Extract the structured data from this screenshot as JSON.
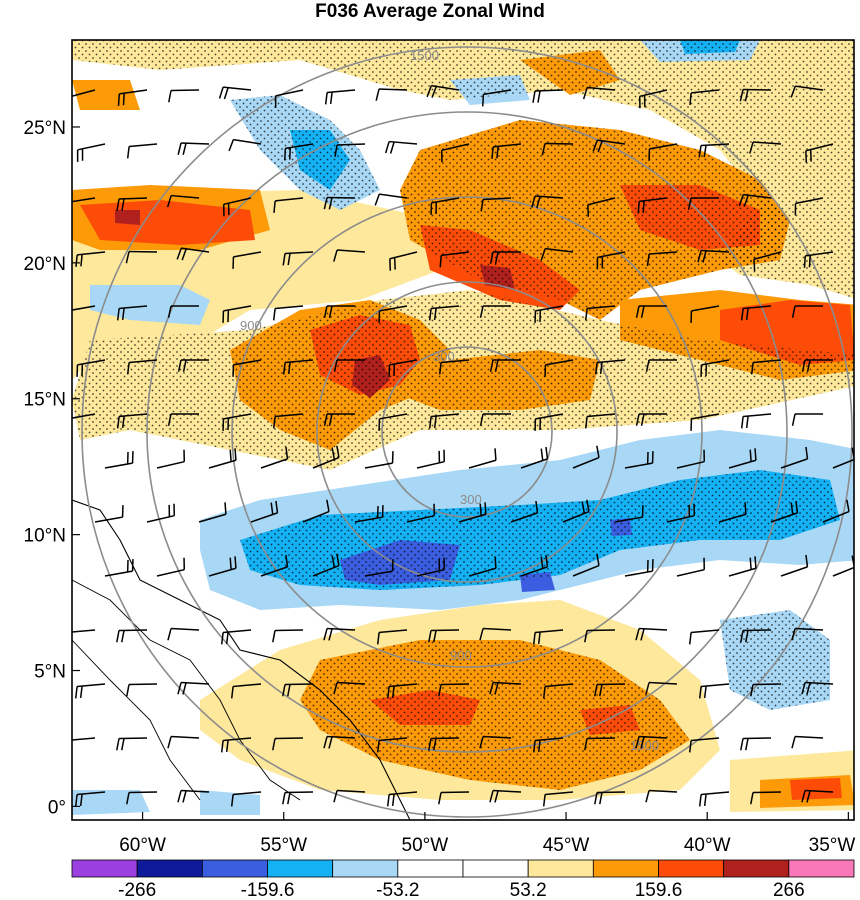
{
  "title": "F036 Average Zonal Wind",
  "chart_data": {
    "type": "heatmap",
    "title": "F036 Average Zonal Wind",
    "x_axis": {
      "label": "",
      "unit": "°W",
      "ticks": [
        -60,
        -55,
        -50,
        -45,
        -40,
        -35
      ],
      "tick_labels": [
        "60°W",
        "55°W",
        "50°W",
        "45°W",
        "40°W",
        "35°W"
      ],
      "range": [
        -62.5,
        -34.8
      ]
    },
    "y_axis": {
      "label": "",
      "unit": "°N",
      "ticks": [
        0,
        5,
        10,
        15,
        20,
        25
      ],
      "tick_labels": [
        "0°",
        "5°N",
        "10°N",
        "15°N",
        "20°N",
        "25°N"
      ],
      "range": [
        -0.5,
        28.2
      ]
    },
    "colorbar": {
      "colors": [
        "#9c3fe0",
        "#0f1a9a",
        "#3b5ee0",
        "#14b2f5",
        "#a8d8f5",
        "#ffffff",
        "#ffffff",
        "#fde89c",
        "#fc9a08",
        "#fc4c08",
        "#b0201c",
        "#f878b8"
      ],
      "labels": [
        "-266",
        "-159.6",
        "-53.2",
        "53.2",
        "159.6",
        "266"
      ],
      "label_positions": [
        1,
        3,
        5,
        7,
        9,
        11
      ]
    },
    "range_rings": {
      "center": [
        -47.4,
        13.4
      ],
      "labels": [
        "300",
        "900",
        "1500"
      ]
    },
    "wind_field": {
      "dominant_direction": "westerly/easterly zonal barbs",
      "stippling": "significant regions"
    },
    "features": [
      {
        "name": "northern-positive-band",
        "sign": "positive",
        "center": [
          -45.5,
          19.5
        ],
        "peak": "159.6-266"
      },
      {
        "name": "western-positive-core",
        "sign": "positive",
        "center": [
          -51.2,
          15.2
        ],
        "peak": "266"
      },
      {
        "name": "central-negative-band",
        "sign": "negative",
        "center": [
          -48.5,
          9.0
        ],
        "peak": "-159.6"
      },
      {
        "name": "southern-positive-band",
        "sign": "positive",
        "center": [
          -45.0,
          3.5
        ],
        "peak": "159.6"
      },
      {
        "name": "northwest-positive-band",
        "sign": "positive",
        "center": [
          -58.5,
          21.0
        ],
        "peak": "266"
      }
    ]
  }
}
